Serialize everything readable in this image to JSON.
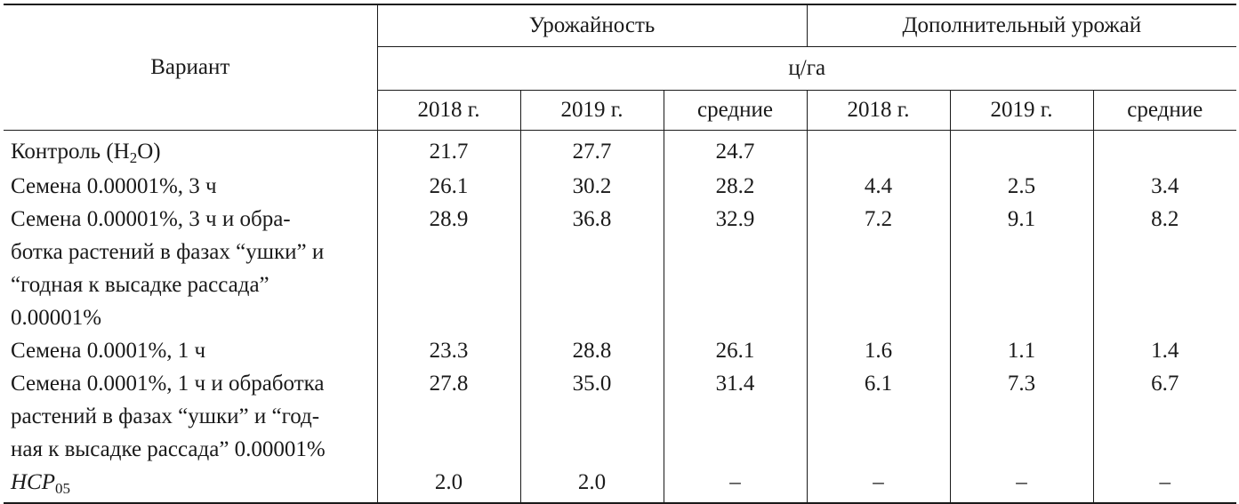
{
  "table": {
    "header": {
      "variant": "Вариант",
      "group_yield": "Урожайность",
      "group_extra": "Дополнительный урожай",
      "unit": "ц/га",
      "columns": [
        "2018 г.",
        "2019 г.",
        "средние",
        "2018 г.",
        "2019 г.",
        "средние"
      ]
    },
    "rows": [
      {
        "label_lines": [
          "Контроль (H",
          "O)"
        ],
        "label_sub": "2",
        "values": [
          "21.7",
          "27.7",
          "24.7",
          "",
          "",
          ""
        ]
      },
      {
        "label_lines": [
          "Семена 0.00001%, 3 ч"
        ],
        "values": [
          "26.1",
          "30.2",
          "28.2",
          "4.4",
          "2.5",
          "3.4"
        ]
      },
      {
        "label_lines": [
          "Семена 0.00001%, 3 ч и обра-",
          "ботка растений в фазах “ушки” и",
          "“годная к высадке рассада”",
          "0.00001%"
        ],
        "values": [
          "28.9",
          "36.8",
          "32.9",
          "7.2",
          "9.1",
          "8.2"
        ]
      },
      {
        "label_lines": [
          "Семена 0.0001%, 1 ч"
        ],
        "values": [
          "23.3",
          "28.8",
          "26.1",
          "1.6",
          "1.1",
          "1.4"
        ]
      },
      {
        "label_lines": [
          "Семена 0.0001%, 1 ч и обработка",
          "растений в фазах “ушки” и “год-",
          "ная к высадке рассада” 0.00001%"
        ],
        "values": [
          "27.8",
          "35.0",
          "31.4",
          "6.1",
          "7.3",
          "6.7"
        ]
      },
      {
        "label_main": "HCP",
        "label_sub": "05",
        "values": [
          "2.0",
          "2.0",
          "–",
          "–",
          "–",
          "–"
        ]
      }
    ]
  }
}
